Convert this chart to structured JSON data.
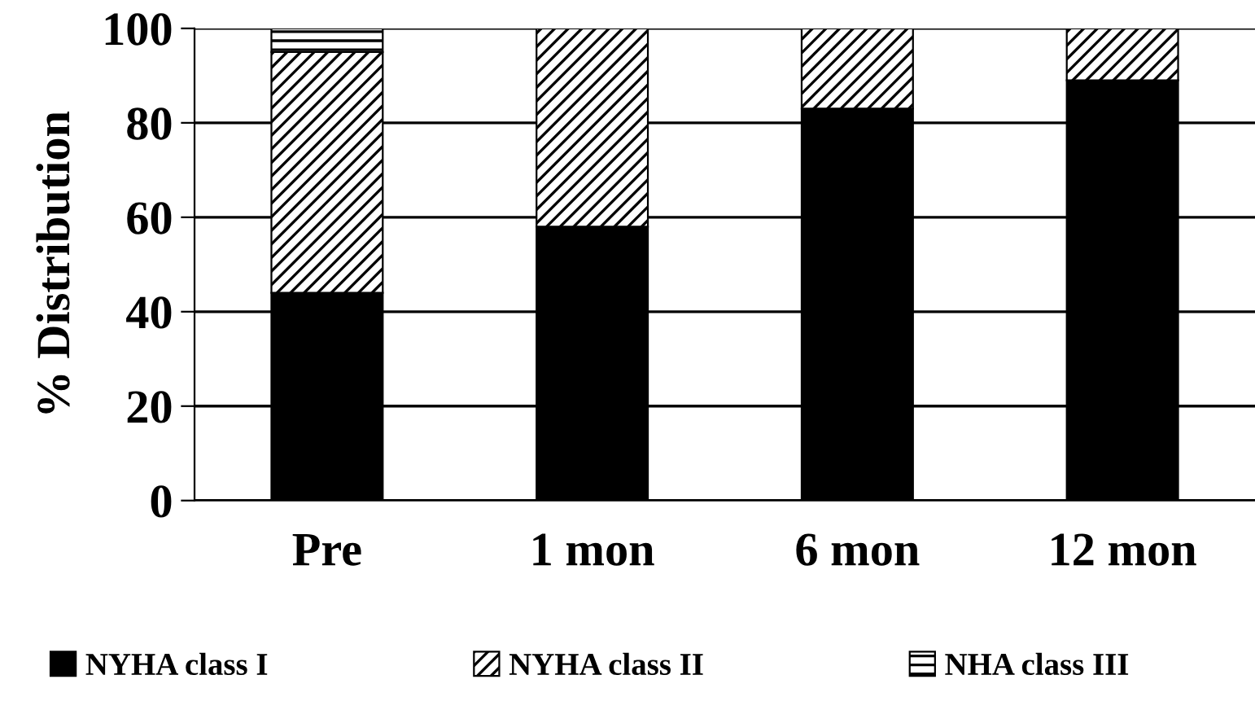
{
  "chart_data": {
    "type": "bar",
    "stacked": true,
    "ylabel": "% Distribution",
    "categories": [
      "Pre",
      "1 mon",
      "6 mon",
      "12 mon"
    ],
    "series": [
      {
        "name": "NYHA class I",
        "color": "#000000",
        "values": [
          44,
          58,
          83,
          89
        ]
      },
      {
        "name": "NYHA class II",
        "color": "#000000",
        "values": [
          51,
          42,
          17,
          11
        ]
      },
      {
        "name": "NHA class III",
        "color": "#000000",
        "values": [
          5,
          0,
          0,
          0
        ]
      }
    ],
    "ylim": [
      0,
      100
    ],
    "yticks": [
      0,
      20,
      40,
      60,
      80,
      100
    ],
    "grid": "y",
    "legend": "bottom"
  }
}
